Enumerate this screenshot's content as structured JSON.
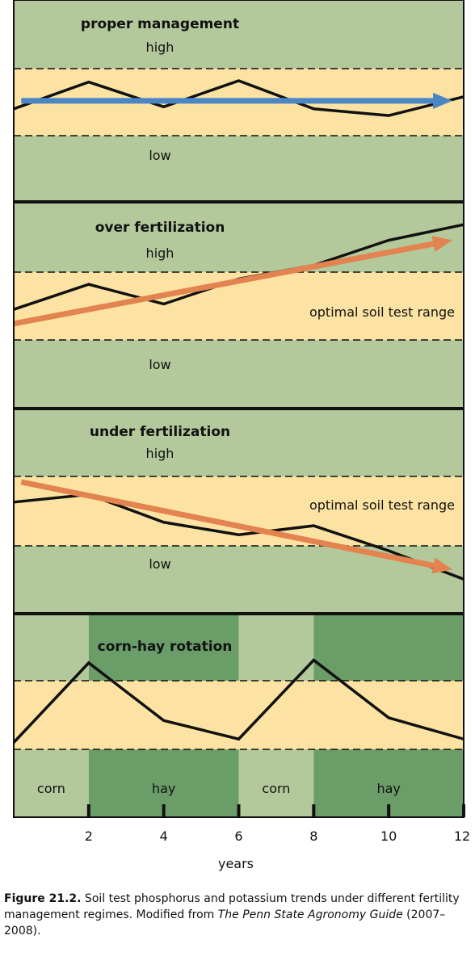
{
  "colors": {
    "band_green": "#b3c89b",
    "band_yellow": "#fde3a3",
    "hay_green": "#6a9d68",
    "line_black": "#111111",
    "arrow_blue": "#4a86c5",
    "arrow_orange": "#e3834f"
  },
  "chart_data": [
    {
      "type": "line",
      "title": "proper management",
      "band_labels": {
        "high": "high",
        "optimal": "",
        "low": "low"
      },
      "x": [
        0,
        2,
        4,
        6,
        8,
        10,
        12
      ],
      "y": [
        0.4,
        0.8,
        0.43,
        0.82,
        0.4,
        0.3,
        0.58
      ],
      "trend": {
        "from": [
          0.2,
          0.52
        ],
        "to": [
          11.7,
          0.52
        ],
        "color": "blue"
      },
      "xlim": [
        0,
        12
      ]
    },
    {
      "type": "line",
      "title": "over fertilization",
      "band_labels": {
        "high": "high",
        "optimal": "optimal soil test range",
        "low": "low"
      },
      "x": [
        0,
        2,
        4,
        6,
        8,
        10,
        12
      ],
      "y": [
        0.45,
        0.82,
        0.53,
        0.9,
        1.1,
        1.47,
        1.7
      ],
      "trend": {
        "from": [
          0.0,
          0.24
        ],
        "to": [
          11.7,
          1.47
        ],
        "color": "orange"
      },
      "xlim": [
        0,
        12
      ]
    },
    {
      "type": "line",
      "title": "under fertilization",
      "band_labels": {
        "high": "high",
        "optimal": "optimal soil test range",
        "low": "low"
      },
      "x": [
        0,
        2,
        4,
        6,
        8,
        10,
        12
      ],
      "y": [
        0.63,
        0.74,
        0.34,
        0.16,
        0.29,
        -0.07,
        -0.48
      ],
      "trend": {
        "from": [
          0.2,
          0.92
        ],
        "to": [
          11.7,
          -0.34
        ],
        "color": "orange"
      },
      "xlim": [
        0,
        12
      ]
    },
    {
      "type": "line",
      "title": "corn-hay rotation",
      "x": [
        0,
        2,
        4,
        6,
        8,
        10,
        12
      ],
      "y": [
        0.1,
        1.26,
        0.42,
        0.15,
        1.3,
        0.46,
        0.15
      ],
      "rotation": [
        {
          "label": "corn",
          "from": 0,
          "to": 2,
          "crop": "corn"
        },
        {
          "label": "hay",
          "from": 2,
          "to": 6,
          "crop": "hay"
        },
        {
          "label": "corn",
          "from": 6,
          "to": 8,
          "crop": "corn"
        },
        {
          "label": "hay",
          "from": 8,
          "to": 12,
          "crop": "hay"
        }
      ],
      "xlim": [
        0,
        12
      ]
    }
  ],
  "x_axis": {
    "ticks": [
      2,
      4,
      6,
      8,
      10,
      12
    ],
    "tick_labels": [
      "2",
      "4",
      "6",
      "8",
      "10",
      "12"
    ],
    "label": "years"
  },
  "caption": {
    "label": "Figure 21.2.",
    "text_1": " Soil test phosphorus and potassium trends under different fertility management regimes. Modified from ",
    "italic": "The Penn State Agronomy Guide",
    "text_2": " (2007–2008)."
  }
}
